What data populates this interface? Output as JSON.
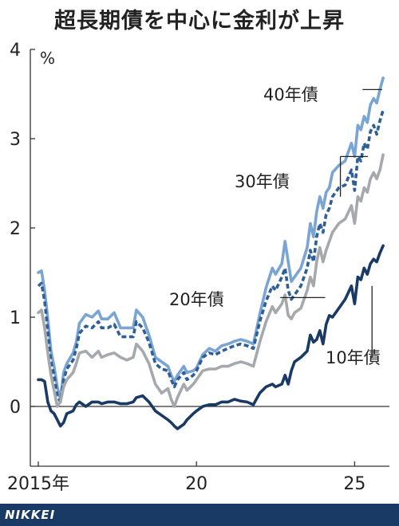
{
  "title": "超長期債を中心に金利が上昇",
  "brand": "NIKKEI",
  "colors": {
    "c40": "#7aa5d2",
    "c30": "#2e5f98",
    "c20": "#a5a9ad",
    "c10": "#1a3a66",
    "footer": "#1a3a66",
    "axis": "#333333"
  },
  "chart_data": {
    "type": "line",
    "title": "超長期債を中心に金利が上昇",
    "ylabel": "%",
    "xlabel": "",
    "ylim": [
      0,
      4
    ],
    "xlim": [
      2015.0,
      2026.1
    ],
    "y_ticks": [
      {
        "value": 0,
        "label": "0"
      },
      {
        "value": 1,
        "label": "1"
      },
      {
        "value": 2,
        "label": "2"
      },
      {
        "value": 3,
        "label": "3"
      },
      {
        "value": 4,
        "label": "4"
      }
    ],
    "x_ticks": [
      {
        "value": 2015,
        "label": "2015年"
      },
      {
        "value": 2020,
        "label": "20"
      },
      {
        "value": 2025,
        "label": "25"
      }
    ],
    "grid": false,
    "series": [
      {
        "name": "40年債",
        "key": "s40",
        "style": "solid",
        "color_key": "c40",
        "label_pos": [
          2023.7,
          3.55
        ],
        "x": [
          2015.0,
          2015.1,
          2015.2,
          2015.3,
          2015.4,
          2015.5,
          2015.6,
          2015.7,
          2015.8,
          2015.9,
          2016.1,
          2016.2,
          2016.3,
          2016.5,
          2016.7,
          2016.9,
          2017.0,
          2017.2,
          2017.4,
          2017.6,
          2017.8,
          2018.0,
          2018.1,
          2018.3,
          2018.5,
          2018.7,
          2018.9,
          2019.1,
          2019.2,
          2019.3,
          2019.4,
          2019.6,
          2019.7,
          2019.9,
          2020.0,
          2020.2,
          2020.4,
          2020.6,
          2020.8,
          2021.0,
          2021.2,
          2021.4,
          2021.6,
          2021.8,
          2022.0,
          2022.2,
          2022.4,
          2022.5,
          2022.7,
          2022.8,
          2022.9,
          2023.0,
          2023.1,
          2023.3,
          2023.5,
          2023.6,
          2023.7,
          2023.8,
          2023.9,
          2024.0,
          2024.1,
          2024.2,
          2024.3,
          2024.5,
          2024.7,
          2024.9,
          2025.0,
          2025.1,
          2025.2,
          2025.3,
          2025.4,
          2025.5,
          2025.6,
          2025.7,
          2025.8,
          2025.9
        ],
        "values": [
          1.5,
          1.52,
          1.3,
          0.98,
          0.62,
          0.45,
          0.22,
          0.08,
          0.38,
          0.48,
          0.6,
          0.72,
          0.93,
          1.03,
          1.0,
          1.07,
          0.98,
          0.98,
          1.05,
          0.88,
          0.88,
          0.88,
          1.08,
          1.0,
          0.8,
          0.55,
          0.5,
          0.45,
          0.35,
          0.28,
          0.35,
          0.45,
          0.38,
          0.4,
          0.43,
          0.58,
          0.65,
          0.62,
          0.68,
          0.7,
          0.73,
          0.75,
          0.73,
          0.7,
          1.03,
          1.33,
          1.55,
          1.48,
          1.6,
          1.85,
          1.62,
          1.4,
          1.45,
          1.55,
          1.78,
          2.05,
          1.9,
          2.18,
          2.35,
          2.22,
          2.4,
          2.45,
          2.62,
          2.7,
          2.75,
          2.95,
          2.8,
          3.15,
          3.1,
          3.25,
          3.18,
          3.38,
          3.45,
          3.4,
          3.55,
          3.68
        ]
      },
      {
        "name": "30年債",
        "key": "s30",
        "style": "dashed",
        "color_key": "c30",
        "label_pos": [
          2023.3,
          2.8
        ],
        "x": [
          2015.0,
          2015.1,
          2015.2,
          2015.3,
          2015.4,
          2015.5,
          2015.6,
          2015.7,
          2015.8,
          2015.9,
          2016.1,
          2016.2,
          2016.3,
          2016.5,
          2016.7,
          2016.9,
          2017.0,
          2017.2,
          2017.4,
          2017.6,
          2017.8,
          2018.0,
          2018.1,
          2018.3,
          2018.5,
          2018.7,
          2018.9,
          2019.1,
          2019.2,
          2019.3,
          2019.4,
          2019.6,
          2019.7,
          2019.9,
          2020.0,
          2020.2,
          2020.4,
          2020.6,
          2020.8,
          2021.0,
          2021.2,
          2021.4,
          2021.6,
          2021.8,
          2022.0,
          2022.2,
          2022.4,
          2022.5,
          2022.7,
          2022.8,
          2022.9,
          2023.0,
          2023.1,
          2023.3,
          2023.5,
          2023.6,
          2023.7,
          2023.8,
          2023.9,
          2024.0,
          2024.1,
          2024.2,
          2024.3,
          2024.5,
          2024.7,
          2024.9,
          2025.0,
          2025.1,
          2025.2,
          2025.3,
          2025.4,
          2025.5,
          2025.6,
          2025.7,
          2025.8,
          2025.9
        ],
        "values": [
          1.35,
          1.38,
          1.18,
          0.85,
          0.5,
          0.35,
          0.12,
          0.05,
          0.3,
          0.42,
          0.52,
          0.65,
          0.82,
          0.9,
          0.88,
          0.95,
          0.88,
          0.88,
          0.92,
          0.78,
          0.78,
          0.78,
          0.95,
          0.88,
          0.72,
          0.48,
          0.42,
          0.4,
          0.3,
          0.22,
          0.3,
          0.38,
          0.3,
          0.35,
          0.4,
          0.55,
          0.6,
          0.58,
          0.62,
          0.65,
          0.68,
          0.7,
          0.68,
          0.65,
          0.95,
          1.18,
          1.35,
          1.3,
          1.45,
          1.55,
          1.3,
          1.2,
          1.25,
          1.35,
          1.55,
          1.75,
          1.62,
          1.9,
          2.05,
          1.95,
          2.15,
          2.22,
          2.35,
          2.45,
          2.48,
          2.65,
          2.42,
          2.8,
          2.75,
          2.95,
          2.88,
          3.08,
          3.15,
          3.05,
          3.2,
          3.32
        ]
      },
      {
        "name": "20年債",
        "key": "s20",
        "style": "solid",
        "color_key": "c20",
        "label_pos": [
          2021.9,
          1.18
        ],
        "x": [
          2015.0,
          2015.1,
          2015.2,
          2015.3,
          2015.4,
          2015.5,
          2015.6,
          2015.7,
          2015.8,
          2015.9,
          2016.1,
          2016.2,
          2016.3,
          2016.5,
          2016.7,
          2016.9,
          2017.0,
          2017.2,
          2017.4,
          2017.6,
          2017.8,
          2018.0,
          2018.1,
          2018.3,
          2018.5,
          2018.7,
          2018.9,
          2019.1,
          2019.2,
          2019.3,
          2019.4,
          2019.6,
          2019.7,
          2019.9,
          2020.0,
          2020.2,
          2020.4,
          2020.6,
          2020.8,
          2021.0,
          2021.2,
          2021.4,
          2021.6,
          2021.8,
          2022.0,
          2022.2,
          2022.4,
          2022.5,
          2022.7,
          2022.8,
          2022.9,
          2023.0,
          2023.1,
          2023.3,
          2023.5,
          2023.6,
          2023.7,
          2023.8,
          2023.9,
          2024.0,
          2024.1,
          2024.2,
          2024.3,
          2024.5,
          2024.7,
          2024.9,
          2025.0,
          2025.1,
          2025.2,
          2025.3,
          2025.4,
          2025.5,
          2025.6,
          2025.7,
          2025.8,
          2025.9
        ],
        "values": [
          1.05,
          1.08,
          0.88,
          0.6,
          0.35,
          0.18,
          0.0,
          0.05,
          0.22,
          0.3,
          0.38,
          0.48,
          0.6,
          0.62,
          0.55,
          0.62,
          0.55,
          0.58,
          0.6,
          0.55,
          0.52,
          0.55,
          0.7,
          0.62,
          0.48,
          0.25,
          0.15,
          0.2,
          0.08,
          0.0,
          0.1,
          0.25,
          0.18,
          0.25,
          0.3,
          0.4,
          0.42,
          0.42,
          0.45,
          0.45,
          0.48,
          0.5,
          0.48,
          0.45,
          0.72,
          0.95,
          1.12,
          1.05,
          1.15,
          1.25,
          1.02,
          0.98,
          1.05,
          1.1,
          1.3,
          1.45,
          1.35,
          1.62,
          1.78,
          1.62,
          1.75,
          1.85,
          1.95,
          2.05,
          2.1,
          2.25,
          2.05,
          2.35,
          2.3,
          2.45,
          2.4,
          2.55,
          2.62,
          2.55,
          2.65,
          2.82
        ]
      },
      {
        "name": "10年債",
        "key": "s10",
        "style": "solid",
        "color_key": "c10",
        "label_pos": [
          2025.55,
          0.52
        ],
        "x": [
          2015.0,
          2015.1,
          2015.2,
          2015.3,
          2015.4,
          2015.5,
          2015.6,
          2015.7,
          2015.8,
          2015.9,
          2016.1,
          2016.2,
          2016.3,
          2016.5,
          2016.7,
          2016.9,
          2017.0,
          2017.2,
          2017.4,
          2017.6,
          2017.8,
          2018.0,
          2018.1,
          2018.3,
          2018.5,
          2018.7,
          2018.9,
          2019.1,
          2019.2,
          2019.3,
          2019.4,
          2019.6,
          2019.7,
          2019.9,
          2020.0,
          2020.2,
          2020.4,
          2020.6,
          2020.8,
          2021.0,
          2021.2,
          2021.4,
          2021.6,
          2021.8,
          2022.0,
          2022.2,
          2022.4,
          2022.5,
          2022.7,
          2022.8,
          2022.9,
          2023.0,
          2023.1,
          2023.3,
          2023.5,
          2023.6,
          2023.7,
          2023.8,
          2023.9,
          2024.0,
          2024.1,
          2024.2,
          2024.3,
          2024.5,
          2024.7,
          2024.9,
          2025.0,
          2025.1,
          2025.2,
          2025.3,
          2025.4,
          2025.5,
          2025.6,
          2025.7,
          2025.8,
          2025.9
        ],
        "values": [
          0.3,
          0.3,
          0.28,
          0.05,
          -0.05,
          -0.08,
          -0.15,
          -0.22,
          -0.18,
          -0.08,
          -0.05,
          0.02,
          0.05,
          0.0,
          0.05,
          0.05,
          0.03,
          0.05,
          0.05,
          0.03,
          0.03,
          0.05,
          0.1,
          0.12,
          0.05,
          -0.05,
          -0.1,
          -0.15,
          -0.18,
          -0.22,
          -0.25,
          -0.2,
          -0.15,
          -0.08,
          -0.05,
          0.0,
          0.02,
          0.02,
          0.05,
          0.05,
          0.08,
          0.06,
          0.05,
          0.02,
          0.15,
          0.22,
          0.25,
          0.22,
          0.25,
          0.35,
          0.25,
          0.4,
          0.5,
          0.55,
          0.62,
          0.8,
          0.72,
          0.75,
          0.85,
          0.7,
          0.92,
          1.02,
          1.0,
          1.1,
          1.2,
          1.35,
          1.15,
          1.45,
          1.42,
          1.55,
          1.48,
          1.6,
          1.65,
          1.62,
          1.72,
          1.8
        ]
      }
    ]
  }
}
